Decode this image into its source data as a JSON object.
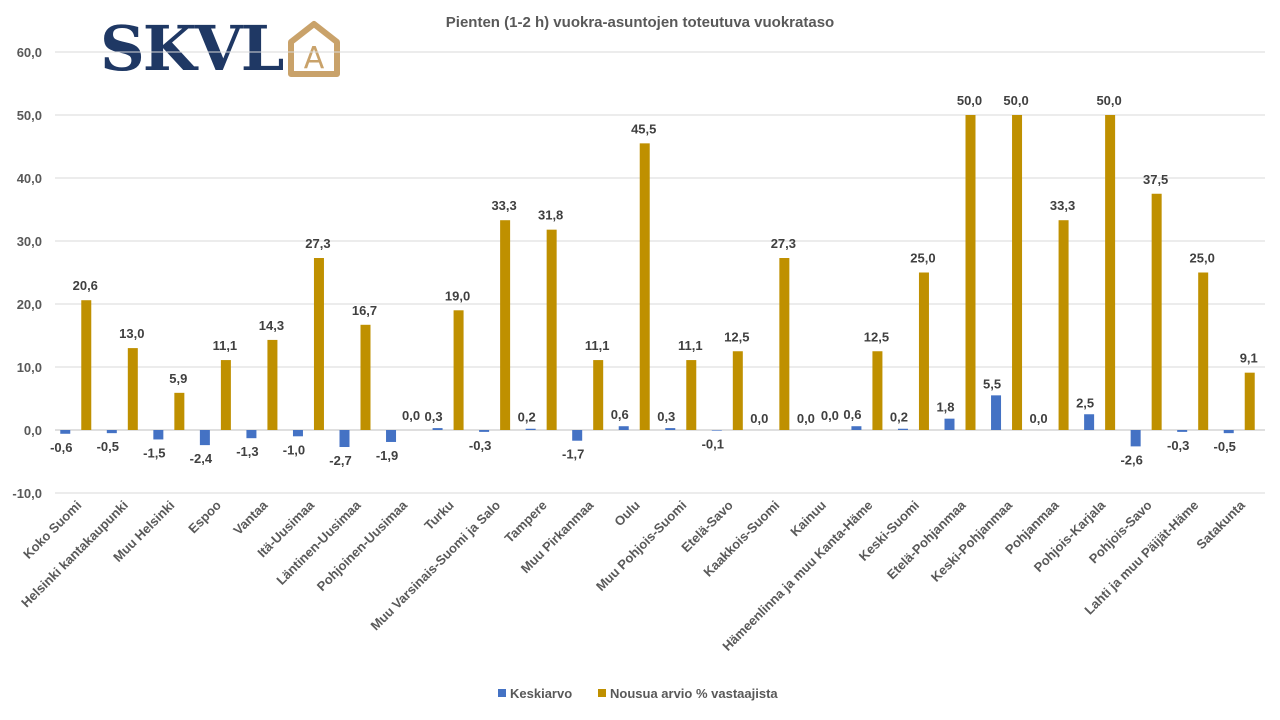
{
  "logo": {
    "text": "SKVL",
    "mark_letter": "A",
    "text_color": "#1f3864",
    "mark_color": "#c9a26a"
  },
  "chart_data": {
    "type": "bar",
    "title": "Pienten (1-2 h) vuokra-asuntojen toteutuva vuokrataso",
    "xlabel": "",
    "ylabel": "",
    "ylim": [
      -10,
      60
    ],
    "yticks": [
      "-10,0",
      "0,0",
      "10,0",
      "20,0",
      "30,0",
      "40,0",
      "50,0",
      "60,0"
    ],
    "grid": true,
    "legend_position": "bottom",
    "categories": [
      "Koko Suomi",
      "Helsinki kantakaupunki",
      "Muu Helsinki",
      "Espoo",
      "Vantaa",
      "Itä-Uusimaa",
      "Läntinen-Uusimaa",
      "Pohjoinen-Uusimaa",
      "Turku",
      "Muu Varsinais-Suomi ja Salo",
      "Tampere",
      "Muu Pirkanmaa",
      "Oulu",
      "Muu Pohjois-Suomi",
      "Etelä-Savo",
      "Kaakkois-Suomi",
      "Kainuu",
      "Hämeenlinna ja muu Kanta-Häme",
      "Keski-Suomi",
      "Etelä-Pohjanmaa",
      "Keski-Pohjanmaa",
      "Pohjanmaa",
      "Pohjois-Karjala",
      "Pohjois-Savo",
      "Lahti ja muu Päijät-Häme",
      "Satakunta"
    ],
    "series": [
      {
        "name": "Keskiarvo",
        "color": "#4472c4",
        "values": [
          -0.6,
          -0.5,
          -1.5,
          -2.4,
          -1.3,
          -1.0,
          -2.7,
          -1.9,
          0.3,
          -0.3,
          0.2,
          -1.7,
          0.6,
          0.3,
          -0.1,
          0.0,
          0.0,
          0.6,
          0.2,
          1.8,
          5.5,
          0.0,
          2.5,
          -2.6,
          -0.3,
          -0.5
        ],
        "labels": [
          "-0,6",
          "-0,5",
          "-1,5",
          "-2,4",
          "-1,3",
          "-1,0",
          "-2,7",
          "-1,9",
          "0,3",
          "-0,3",
          "0,2",
          "-1,7",
          "0,6",
          "0,3",
          "-0,1",
          "0,0",
          "0,0",
          "0,6",
          "0,2",
          "1,8",
          "5,5",
          "0,0",
          "2,5",
          "-2,6",
          "-0,3",
          "-0,5"
        ]
      },
      {
        "name": "Nousua arvio % vastaajista",
        "color": "#bf9000",
        "values": [
          20.6,
          13.0,
          5.9,
          11.1,
          14.3,
          27.3,
          16.7,
          0.0,
          19.0,
          33.3,
          31.8,
          11.1,
          45.5,
          11.1,
          12.5,
          27.3,
          0.0,
          12.5,
          25.0,
          50.0,
          50.0,
          33.3,
          50.0,
          37.5,
          25.0,
          9.1
        ],
        "labels": [
          "20,6",
          "13,0",
          "5,9",
          "11,1",
          "14,3",
          "27,3",
          "16,7",
          "0,0",
          "19,0",
          "33,3",
          "31,8",
          "11,1",
          "45,5",
          "11,1",
          "12,5",
          "27,3",
          "0,0",
          "12,5",
          "25,0",
          "50,0",
          "50,0",
          "33,3",
          "50,0",
          "37,5",
          "25,0",
          "9,1"
        ]
      }
    ]
  }
}
